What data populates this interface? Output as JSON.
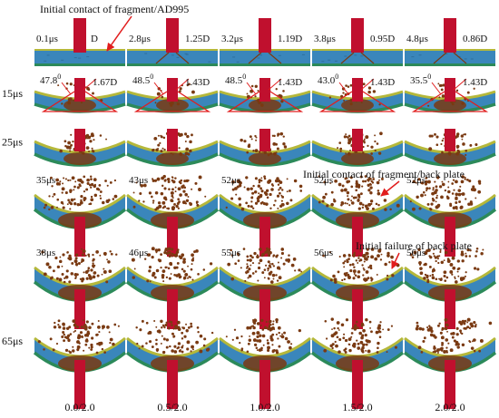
{
  "annotations": {
    "contact_ad995": "Initial  contact of fragment/AD995",
    "contact_back_plate": "Initial  contact of fragment/back plate",
    "failure_back_plate": "Initial  failure of back plate"
  },
  "rows": [
    {
      "label": "",
      "panels": [
        {
          "time": "0.1μs",
          "value": "D"
        },
        {
          "time": "2.8μs",
          "value": "1.25D"
        },
        {
          "time": "3.2μs",
          "value": "1.19D"
        },
        {
          "time": "3.8μs",
          "value": "0.95D"
        },
        {
          "time": "4.8μs",
          "value": "0.86D"
        }
      ]
    },
    {
      "label": "15μs",
      "panels": [
        {
          "angle": "47.8",
          "angle_sup": "0",
          "value": "1.67D"
        },
        {
          "angle": "48.5",
          "angle_sup": "0",
          "value": "1.43D"
        },
        {
          "angle": "48.5",
          "angle_sup": "0",
          "value": "1.43D"
        },
        {
          "angle": "43.0",
          "angle_sup": "0",
          "value": "1.43D"
        },
        {
          "angle": "35.5",
          "angle_sup": "0",
          "value": "1.43D"
        }
      ]
    },
    {
      "label": "25μs",
      "panels": [
        {},
        {},
        {},
        {},
        {}
      ]
    },
    {
      "label": "",
      "panels": [
        {
          "time": "35μs"
        },
        {
          "time": "43μs"
        },
        {
          "time": "52μs"
        },
        {
          "time": "52μs"
        },
        {
          "time": "52μs"
        }
      ]
    },
    {
      "label": "",
      "panels": [
        {
          "time": "38μs"
        },
        {
          "time": "46μs"
        },
        {
          "time": "55μs"
        },
        {
          "time": "56μs"
        },
        {
          "time": "56μs"
        }
      ]
    },
    {
      "label": "65μs",
      "panels": [
        {},
        {},
        {},
        {},
        {}
      ]
    }
  ],
  "columns": [
    "0.0/2.0",
    "0.5/2.0",
    "1.0/2.0",
    "1.5/2.0",
    "2.0/2.0"
  ],
  "colors": {
    "ceramic": "#3a86bb",
    "ceramic_dark": "#2f6f9c",
    "back_plate": "#2c8a5a",
    "front_layer": "#b5b83a",
    "fragment": "#c0102e",
    "debris": "#7a3a12",
    "annotation": "#e11d1d"
  }
}
